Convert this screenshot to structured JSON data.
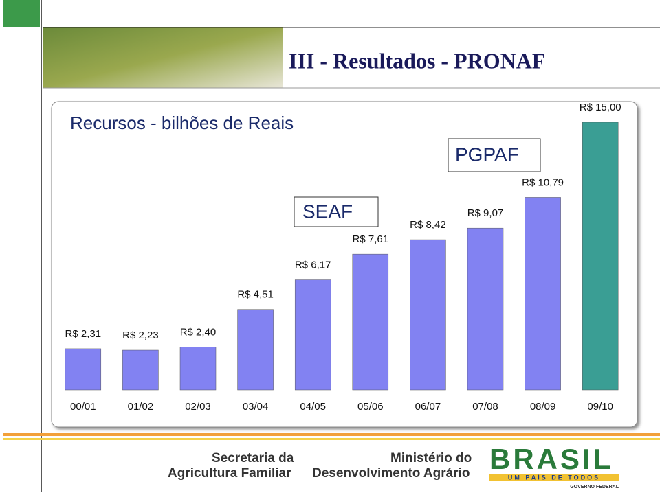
{
  "header": {
    "title": "III -  Resultados - PRONAF"
  },
  "chart_data": {
    "type": "bar",
    "subtitle": "Recursos  - bilhões de Reais",
    "categories": [
      "00/01",
      "01/02",
      "02/03",
      "03/04",
      "04/05",
      "05/06",
      "06/07",
      "07/08",
      "08/09",
      "09/10"
    ],
    "values": [
      2.31,
      2.23,
      2.4,
      4.51,
      6.17,
      7.61,
      8.42,
      9.07,
      10.79,
      15.0
    ],
    "value_labels": [
      "R$ 2,31",
      "R$ 2,23",
      "R$ 2,40",
      "R$ 4,51",
      "R$ 6,17",
      "R$ 7,61",
      "R$ 8,42",
      "R$ 9,07",
      "R$ 10,79",
      "R$ 15,00"
    ],
    "colors": [
      "#8282f2",
      "#8282f2",
      "#8282f2",
      "#8282f2",
      "#8282f2",
      "#8282f2",
      "#8282f2",
      "#8282f2",
      "#8282f2",
      "#3a9e94"
    ],
    "annotations": [
      "SEAF",
      "PGPAF"
    ]
  },
  "footer": {
    "logo1": [
      "Secretaria da",
      "Agricultura Familiar"
    ],
    "logo2": [
      "Ministério do",
      "Desenvolvimento Agrário"
    ],
    "logo3": [
      "BRASIL",
      "UM PAÍS DE TODOS",
      "GOVERNO FEDERAL"
    ]
  }
}
